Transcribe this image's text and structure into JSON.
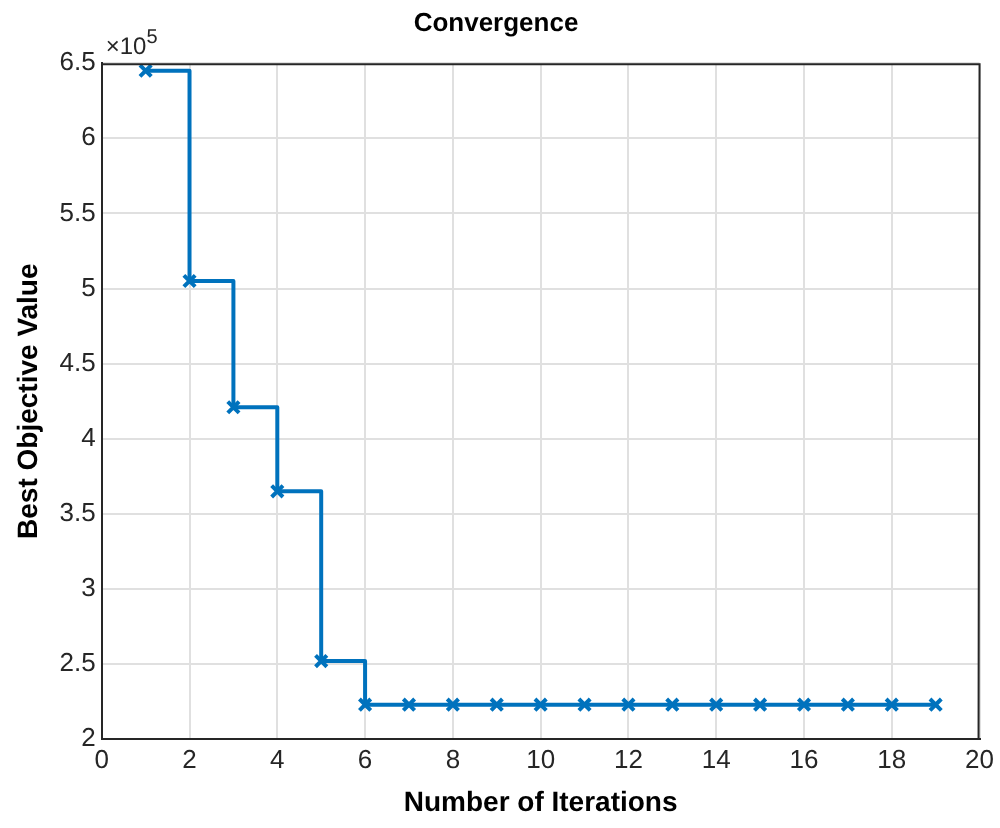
{
  "chart_data": {
    "type": "step",
    "title": "Convergence",
    "xlabel": "Number of Iterations",
    "ylabel": "Best Objective Value",
    "annotations": [
      "×10$^{5}$"
    ],
    "x": [
      1,
      2,
      3,
      4,
      5,
      6,
      7,
      8,
      9,
      10,
      11,
      12,
      13,
      14,
      15,
      16,
      17,
      18,
      19
    ],
    "series": [
      {
        "color": "#0072bd",
        "values": [
          6.45,
          5.05,
          4.21,
          3.65,
          2.52,
          2.23,
          2.23,
          2.23,
          2.23,
          2.23,
          2.23,
          2.23,
          2.23,
          2.23,
          2.23,
          2.23,
          2.23,
          2.23,
          2.23
        ]
      }
    ],
    "xlim": [
      0,
      20
    ],
    "xticks": [
      0,
      2,
      4,
      6,
      8,
      10,
      12,
      14,
      16,
      18,
      20
    ],
    "ylim": [
      2,
      6.5
    ],
    "yticks": [
      2,
      2.5,
      3,
      3.5,
      4,
      4.5,
      5,
      5.5,
      6,
      6.5
    ],
    "grid": true,
    "marker": "cross",
    "line_style": "solid",
    "legend": false
  }
}
